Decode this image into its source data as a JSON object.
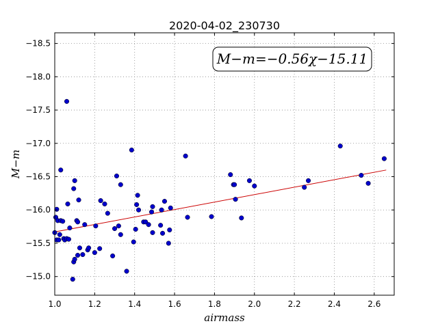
{
  "chart_data": {
    "type": "scatter",
    "title": "2020-04-02_230730",
    "xlabel": "airmass",
    "ylabel": "M−m",
    "xlim": [
      1.0,
      2.7
    ],
    "ylim": [
      -18.66,
      -14.72
    ],
    "y_inverted": true,
    "grid": true,
    "xticks": [
      1.0,
      1.2,
      1.4,
      1.6,
      1.8,
      2.0,
      2.2,
      2.4,
      2.6
    ],
    "xtick_labels": [
      "1.0",
      "1.2",
      "1.4",
      "1.6",
      "1.8",
      "2.0",
      "2.2",
      "2.4",
      "2.6"
    ],
    "yticks": [
      -15.0,
      -15.5,
      -16.0,
      -16.5,
      -17.0,
      -17.5,
      -18.0,
      -18.5
    ],
    "ytick_labels": [
      "−15.0",
      "−15.5",
      "−16.0",
      "−16.5",
      "−17.0",
      "−17.5",
      "−18.0",
      "−18.5"
    ],
    "annotation": "M−m=−0.56χ−15.11",
    "colors": {
      "points": "#0000cc",
      "fit_line": "#cc0000",
      "grid": "#888888"
    },
    "fit": {
      "slope": -0.56,
      "intercept": -15.11,
      "x_range": [
        1.0,
        2.66
      ]
    },
    "points": [
      {
        "x": 1.0,
        "y": -15.66
      },
      {
        "x": 1.005,
        "y": -15.89
      },
      {
        "x": 1.01,
        "y": -15.55
      },
      {
        "x": 1.01,
        "y": -16.01
      },
      {
        "x": 1.015,
        "y": -15.84
      },
      {
        "x": 1.02,
        "y": -15.55
      },
      {
        "x": 1.025,
        "y": -15.63
      },
      {
        "x": 1.03,
        "y": -15.84
      },
      {
        "x": 1.03,
        "y": -16.6
      },
      {
        "x": 1.04,
        "y": -15.83
      },
      {
        "x": 1.045,
        "y": -15.57
      },
      {
        "x": 1.05,
        "y": -15.55
      },
      {
        "x": 1.06,
        "y": -15.57
      },
      {
        "x": 1.06,
        "y": -17.63
      },
      {
        "x": 1.065,
        "y": -16.09
      },
      {
        "x": 1.07,
        "y": -15.56
      },
      {
        "x": 1.075,
        "y": -15.73
      },
      {
        "x": 1.09,
        "y": -14.96
      },
      {
        "x": 1.095,
        "y": -15.22
      },
      {
        "x": 1.095,
        "y": -16.32
      },
      {
        "x": 1.1,
        "y": -15.26
      },
      {
        "x": 1.1,
        "y": -16.44
      },
      {
        "x": 1.11,
        "y": -15.84
      },
      {
        "x": 1.115,
        "y": -15.32
      },
      {
        "x": 1.115,
        "y": -15.82
      },
      {
        "x": 1.12,
        "y": -16.15
      },
      {
        "x": 1.125,
        "y": -15.43
      },
      {
        "x": 1.14,
        "y": -15.33
      },
      {
        "x": 1.15,
        "y": -15.78
      },
      {
        "x": 1.165,
        "y": -15.4
      },
      {
        "x": 1.17,
        "y": -15.43
      },
      {
        "x": 1.2,
        "y": -15.36
      },
      {
        "x": 1.205,
        "y": -15.76
      },
      {
        "x": 1.225,
        "y": -15.42
      },
      {
        "x": 1.23,
        "y": -16.14
      },
      {
        "x": 1.25,
        "y": -16.09
      },
      {
        "x": 1.265,
        "y": -15.95
      },
      {
        "x": 1.29,
        "y": -15.31
      },
      {
        "x": 1.3,
        "y": -15.72
      },
      {
        "x": 1.31,
        "y": -16.51
      },
      {
        "x": 1.32,
        "y": -15.76
      },
      {
        "x": 1.33,
        "y": -15.63
      },
      {
        "x": 1.33,
        "y": -16.38
      },
      {
        "x": 1.36,
        "y": -15.08
      },
      {
        "x": 1.385,
        "y": -16.9
      },
      {
        "x": 1.395,
        "y": -15.52
      },
      {
        "x": 1.405,
        "y": -15.71
      },
      {
        "x": 1.41,
        "y": -16.08
      },
      {
        "x": 1.415,
        "y": -16.22
      },
      {
        "x": 1.42,
        "y": -16.0
      },
      {
        "x": 1.445,
        "y": -15.82
      },
      {
        "x": 1.455,
        "y": -15.82
      },
      {
        "x": 1.47,
        "y": -15.78
      },
      {
        "x": 1.485,
        "y": -15.97
      },
      {
        "x": 1.49,
        "y": -16.05
      },
      {
        "x": 1.49,
        "y": -15.66
      },
      {
        "x": 1.53,
        "y": -15.77
      },
      {
        "x": 1.535,
        "y": -16.0
      },
      {
        "x": 1.54,
        "y": -15.65
      },
      {
        "x": 1.55,
        "y": -16.13
      },
      {
        "x": 1.57,
        "y": -15.5
      },
      {
        "x": 1.575,
        "y": -15.7
      },
      {
        "x": 1.58,
        "y": -16.03
      },
      {
        "x": 1.655,
        "y": -16.81
      },
      {
        "x": 1.665,
        "y": -15.89
      },
      {
        "x": 1.785,
        "y": -15.9
      },
      {
        "x": 1.88,
        "y": -16.53
      },
      {
        "x": 1.895,
        "y": -16.38
      },
      {
        "x": 1.9,
        "y": -16.38
      },
      {
        "x": 1.905,
        "y": -16.16
      },
      {
        "x": 1.935,
        "y": -15.88
      },
      {
        "x": 1.975,
        "y": -16.44
      },
      {
        "x": 2.0,
        "y": -16.36
      },
      {
        "x": 2.25,
        "y": -16.34
      },
      {
        "x": 2.27,
        "y": -16.44
      },
      {
        "x": 2.43,
        "y": -16.96
      },
      {
        "x": 2.535,
        "y": -16.52
      },
      {
        "x": 2.57,
        "y": -16.4
      },
      {
        "x": 2.65,
        "y": -16.77
      }
    ]
  }
}
